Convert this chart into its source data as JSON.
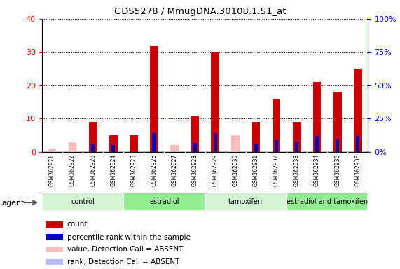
{
  "title": "GDS5278 / MmugDNA.30108.1.S1_at",
  "samples": [
    "GSM362921",
    "GSM362922",
    "GSM362923",
    "GSM362924",
    "GSM362925",
    "GSM362926",
    "GSM362927",
    "GSM362928",
    "GSM362929",
    "GSM362930",
    "GSM362931",
    "GSM362932",
    "GSM362933",
    "GSM362934",
    "GSM362935",
    "GSM362936"
  ],
  "count_present": [
    0,
    0,
    9,
    5,
    5,
    32,
    0,
    11,
    30,
    0,
    9,
    16,
    9,
    21,
    18,
    25
  ],
  "rank_present": [
    0,
    0,
    6,
    5,
    0,
    14,
    0,
    7,
    14,
    0,
    6,
    9,
    8,
    12,
    10,
    12
  ],
  "count_absent": [
    1,
    3,
    0,
    0,
    0,
    0,
    2,
    0,
    0,
    5,
    0,
    0,
    0,
    0,
    0,
    0
  ],
  "rank_absent": [
    1,
    0,
    0,
    0,
    0,
    0,
    1,
    0,
    0,
    0,
    0,
    0,
    0,
    0,
    0,
    0
  ],
  "groups": [
    {
      "label": "control",
      "start": 0,
      "end": 4,
      "color": "#d4f5d4"
    },
    {
      "label": "estradiol",
      "start": 4,
      "end": 8,
      "color": "#90ee90"
    },
    {
      "label": "tamoxifen",
      "start": 8,
      "end": 12,
      "color": "#d4f5d4"
    },
    {
      "label": "estradiol and tamoxifen",
      "start": 12,
      "end": 16,
      "color": "#90ee90"
    }
  ],
  "bar_width": 0.4,
  "blue_bar_width": 0.18,
  "ylim_left": [
    0,
    40
  ],
  "ylim_right": [
    0,
    100
  ],
  "yticks_left": [
    0,
    10,
    20,
    30,
    40
  ],
  "yticks_right": [
    0,
    25,
    50,
    75,
    100
  ],
  "color_count_present": "#cc0000",
  "color_rank_present": "#0000bb",
  "color_count_absent": "#ffbbbb",
  "color_rank_absent": "#bbbbff",
  "tick_label_bg": "#cccccc",
  "legend_items": [
    {
      "label": "count",
      "color": "#cc0000"
    },
    {
      "label": "percentile rank within the sample",
      "color": "#0000bb"
    },
    {
      "label": "value, Detection Call = ABSENT",
      "color": "#ffbbbb"
    },
    {
      "label": "rank, Detection Call = ABSENT",
      "color": "#bbbbff"
    }
  ]
}
